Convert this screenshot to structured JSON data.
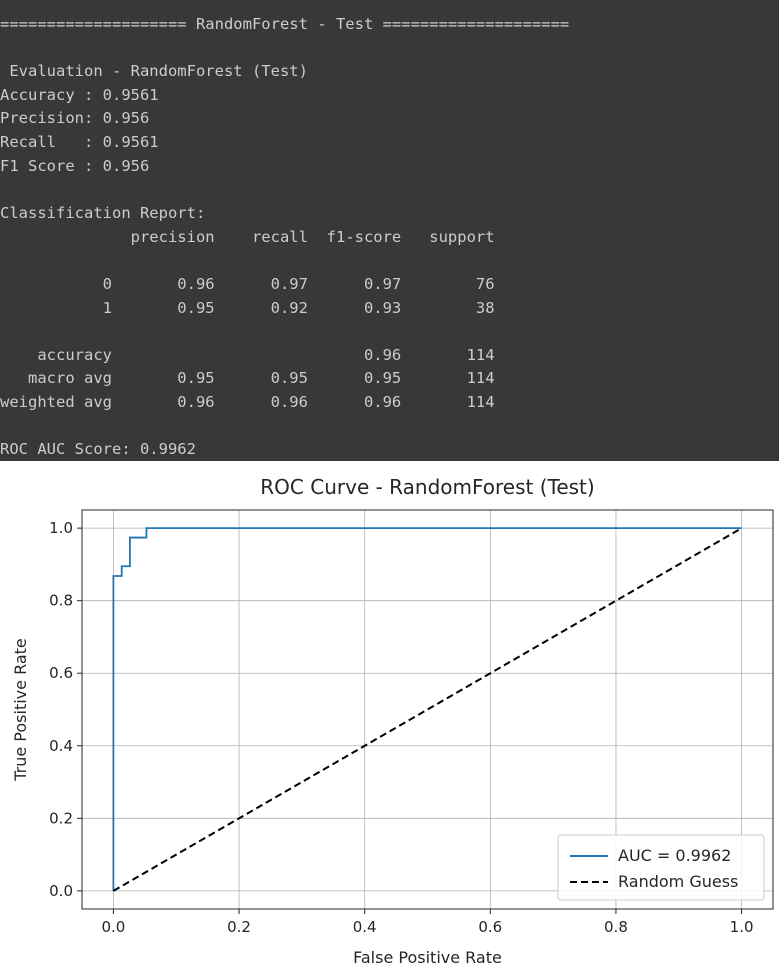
{
  "console": {
    "lines": [
      "==================== RandomForest - Test ====================",
      " Evaluation - RandomForest (Test)",
      "Accuracy : 0.9561",
      "Precision: 0.956",
      "Recall   : 0.9561",
      "F1 Score : 0.956",
      "Classification Report:",
      "              precision    recall  f1-score   support",
      "           0       0.96      0.97      0.97        76",
      "           1       0.95      0.92      0.93        38",
      "    accuracy                           0.96       114",
      "   macro avg       0.95      0.95      0.95       114",
      "weighted avg       0.96      0.96      0.96       114",
      "ROC AUC Score: 0.9962"
    ]
  },
  "chart_data": {
    "type": "line",
    "title": "ROC Curve - RandomForest (Test)",
    "xlabel": "False Positive Rate",
    "ylabel": "True Positive Rate",
    "xlim": [
      -0.05,
      1.05
    ],
    "ylim": [
      -0.05,
      1.05
    ],
    "xticks": [
      0.0,
      0.2,
      0.4,
      0.6,
      0.8,
      1.0
    ],
    "yticks": [
      0.0,
      0.2,
      0.4,
      0.6,
      0.8,
      1.0
    ],
    "grid": true,
    "legend_position": "lower-right",
    "series": [
      {
        "name": "AUC = 0.9962",
        "color": "#1f77b4",
        "style": "solid",
        "x": [
          0.0,
          0.0,
          0.0132,
          0.0132,
          0.0263,
          0.0263,
          0.0526,
          0.0526,
          1.0
        ],
        "y": [
          0.0,
          0.868,
          0.868,
          0.895,
          0.895,
          0.974,
          0.974,
          1.0,
          1.0
        ]
      },
      {
        "name": "Random Guess",
        "color": "#000000",
        "style": "dashed",
        "x": [
          0.0,
          1.0
        ],
        "y": [
          0.0,
          1.0
        ]
      }
    ]
  }
}
